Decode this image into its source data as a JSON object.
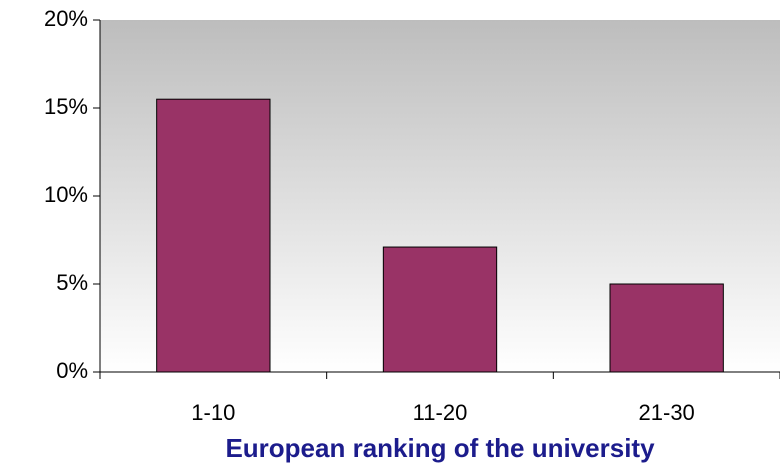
{
  "chart_data": {
    "type": "bar",
    "x_label": "European ranking of the university",
    "categories": [
      "1-10",
      "11-20",
      "21-30"
    ],
    "values": [
      15.5,
      7.1,
      5.0
    ],
    "color": "#993366",
    "ylim": [
      0,
      20
    ],
    "yticks": [
      {
        "value": 0,
        "label": "0%"
      },
      {
        "value": 5,
        "label": "5%"
      },
      {
        "value": 10,
        "label": "10%"
      },
      {
        "value": 15,
        "label": "15%"
      },
      {
        "value": 20,
        "label": "20%"
      }
    ]
  }
}
